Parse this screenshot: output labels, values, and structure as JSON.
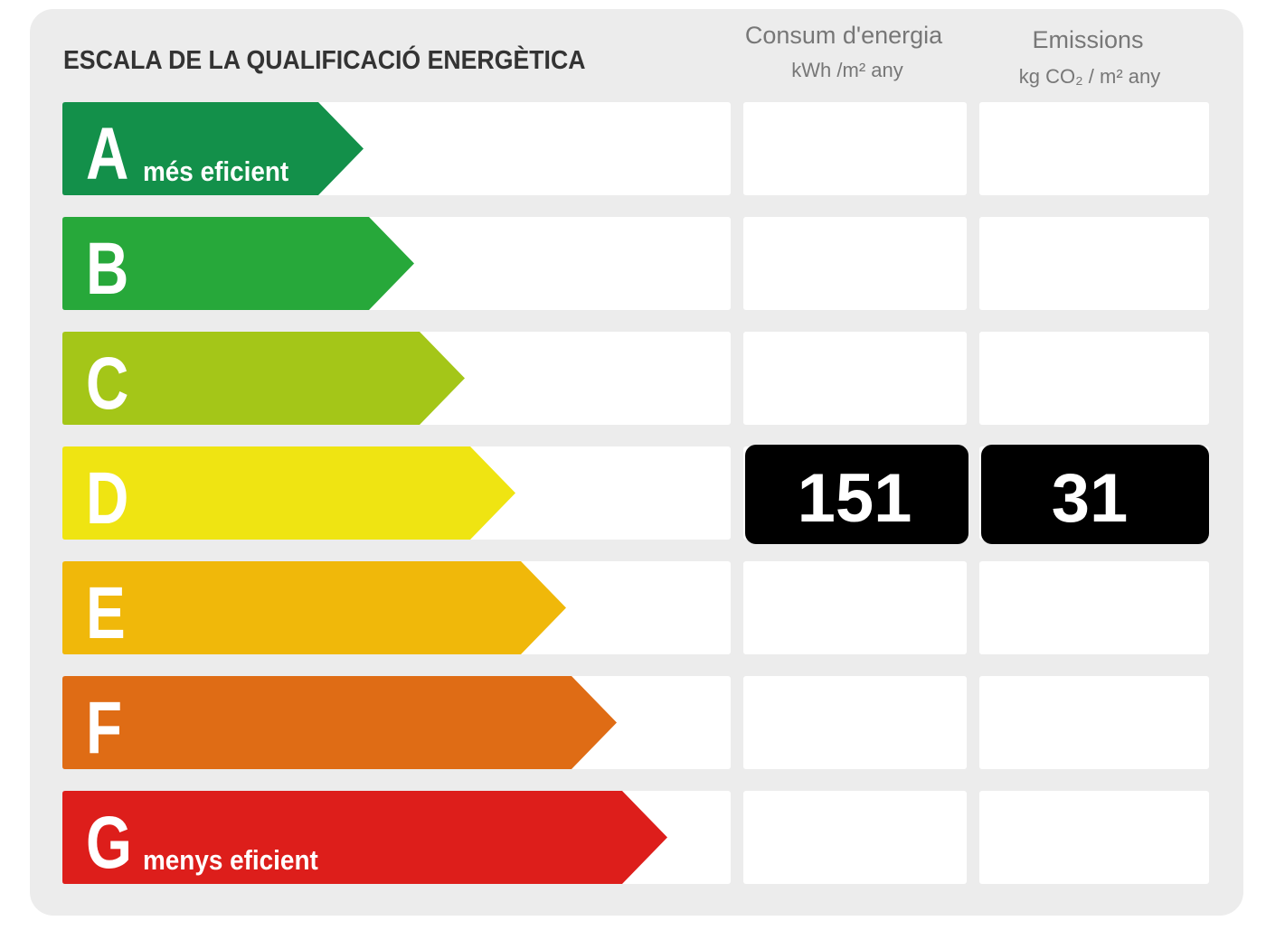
{
  "title": "ESCALA DE LA QUALIFICACIÓ ENERGÈTICA",
  "columns": [
    {
      "title": "Consum d'energia",
      "unit": "kWh /m² any"
    },
    {
      "title": "Emissions",
      "unit": "kg CO₂ / m² any"
    }
  ],
  "ratings": [
    {
      "letter": "A",
      "label": "més eficient",
      "color": "#13904a"
    },
    {
      "letter": "B",
      "color": "#27a83a"
    },
    {
      "letter": "C",
      "color": "#a4c618"
    },
    {
      "letter": "D",
      "color": "#efe412",
      "consumption": 151,
      "emissions": 31
    },
    {
      "letter": "E",
      "color": "#f0b80a"
    },
    {
      "letter": "F",
      "color": "#df6c15"
    },
    {
      "letter": "G",
      "label": "menys eficient",
      "color": "#dd1e1b"
    }
  ]
}
